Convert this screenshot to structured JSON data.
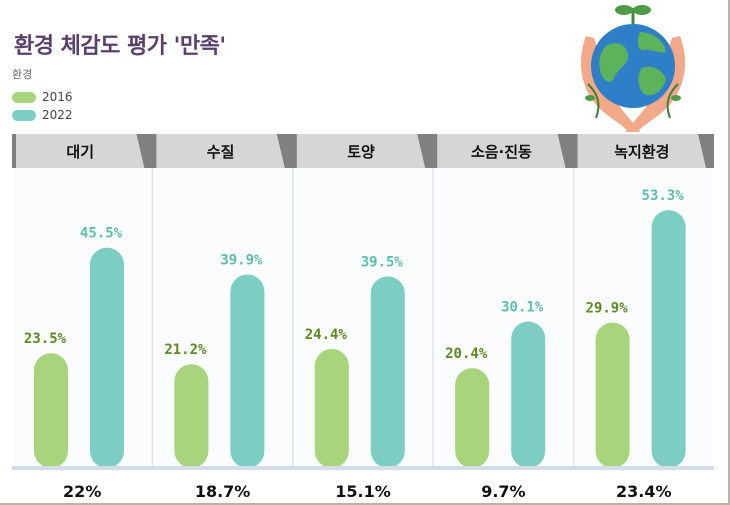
{
  "title": "환경 체감도 평가 '만족'",
  "subtitle": "환경",
  "legend": [
    {
      "label": "2016",
      "color": "#a8d47c"
    },
    {
      "label": "2022",
      "color": "#7ccdc2"
    }
  ],
  "colors": {
    "series_2016": "#a8d47c",
    "series_2022": "#7ccdc2",
    "label_2016": "#5c8a22",
    "label_2022": "#5cbdb1",
    "header_bg": "#808080",
    "header_text": "#111111"
  },
  "icons": [
    "globe-in-hands-icon"
  ],
  "chart_data": {
    "type": "bar",
    "categories": [
      "대기",
      "수질",
      "토양",
      "소음·진동",
      "녹지환경"
    ],
    "series": [
      {
        "name": "2016",
        "values": [
          23.5,
          21.2,
          24.4,
          20.4,
          29.9
        ],
        "labels": [
          "23.5%",
          "21.2%",
          "24.4%",
          "20.4%",
          "29.9%"
        ]
      },
      {
        "name": "2022",
        "values": [
          45.5,
          39.9,
          39.5,
          30.1,
          53.3
        ],
        "labels": [
          "45.5%",
          "39.9%",
          "39.5%",
          "30.1%",
          "53.3%"
        ]
      }
    ],
    "differences": [
      "22%",
      "18.7%",
      "15.1%",
      "9.7%",
      "23.4%"
    ],
    "ylim": [
      0,
      60
    ],
    "legend_position": "top-left"
  }
}
